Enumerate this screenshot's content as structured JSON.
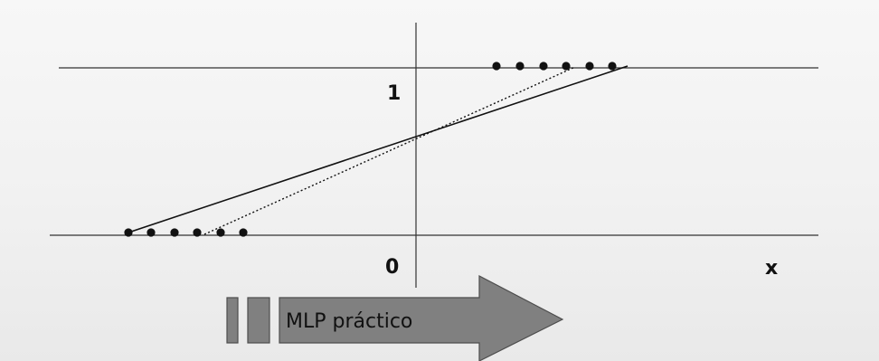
{
  "labels": {
    "y_one": "1",
    "y_zero": "0",
    "x_axis": "x"
  },
  "arrow": {
    "text": "MLP práctico",
    "fill": "#808080",
    "stroke": "#4d4d4d"
  },
  "colors": {
    "line": "#111111",
    "dots": "#111111",
    "axes": "#333333"
  }
}
